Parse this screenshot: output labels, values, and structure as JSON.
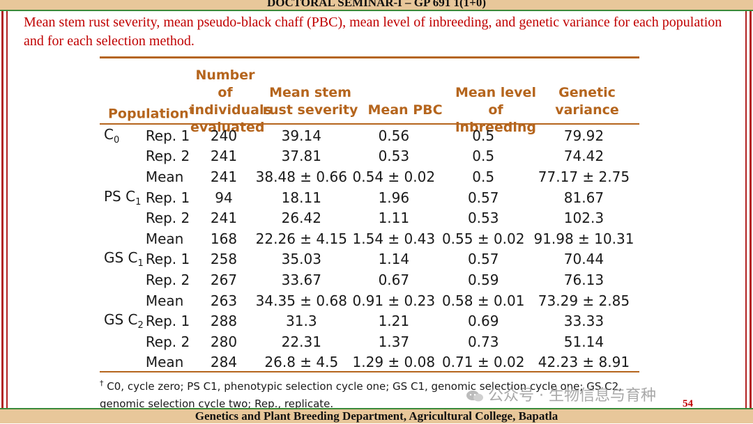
{
  "header": {
    "title": "DOCTORAL SEMINAR-I – GP 691 1(1+0)"
  },
  "heading": "Mean stem rust severity, mean pseudo-black chaff (PBC), mean level of inbreeding, and genetic variance for each population and for each selection method.",
  "table": {
    "columns": {
      "population": "Population",
      "population_mark": "†",
      "n_line1": "Number of",
      "n_line2": "individuals",
      "n_line3": "evaluated",
      "stem_line1": "Mean stem",
      "stem_line2": "rust severity",
      "pbc": "Mean PBC",
      "inb_line1": "Mean level of",
      "inb_line2": "inbreeding",
      "gv_line1": "Genetic",
      "gv_line2": "variance"
    },
    "rows": [
      {
        "pop_base": "C",
        "pop_sub": "0",
        "rep": "Rep. 1",
        "n": "240",
        "stem": "39.14",
        "pbc": "0.56",
        "inb": "0.5",
        "gv": "79.92"
      },
      {
        "pop_base": "",
        "pop_sub": "",
        "rep": "Rep. 2",
        "n": "241",
        "stem": "37.81",
        "pbc": "0.53",
        "inb": "0.5",
        "gv": "74.42"
      },
      {
        "pop_base": "",
        "pop_sub": "",
        "rep": "Mean",
        "n": "241",
        "stem": "38.48 ± 0.66",
        "pbc": "0.54 ± 0.02",
        "inb": "0.5",
        "gv": "77.17 ± 2.75"
      },
      {
        "pop_base": "PS C",
        "pop_sub": "1",
        "rep": "Rep. 1",
        "n": "94",
        "stem": "18.11",
        "pbc": "1.96",
        "inb": "0.57",
        "gv": "81.67"
      },
      {
        "pop_base": "",
        "pop_sub": "",
        "rep": "Rep. 2",
        "n": "241",
        "stem": "26.42",
        "pbc": "1.11",
        "inb": "0.53",
        "gv": "102.3"
      },
      {
        "pop_base": "",
        "pop_sub": "",
        "rep": "Mean",
        "n": "168",
        "stem": "22.26 ± 4.15",
        "pbc": "1.54 ± 0.43",
        "inb": "0.55 ± 0.02",
        "gv": "91.98 ± 10.31"
      },
      {
        "pop_base": "GS C",
        "pop_sub": "1",
        "rep": "Rep. 1",
        "n": "258",
        "stem": "35.03",
        "pbc": "1.14",
        "inb": "0.57",
        "gv": "70.44"
      },
      {
        "pop_base": "",
        "pop_sub": "",
        "rep": "Rep. 2",
        "n": "267",
        "stem": "33.67",
        "pbc": "0.67",
        "inb": "0.59",
        "gv": "76.13"
      },
      {
        "pop_base": "",
        "pop_sub": "",
        "rep": "Mean",
        "n": "263",
        "stem": "34.35 ± 0.68",
        "pbc": "0.91 ± 0.23",
        "inb": "0.58 ± 0.01",
        "gv": "73.29 ± 2.85"
      },
      {
        "pop_base": "GS C",
        "pop_sub": "2",
        "rep": "Rep. 1",
        "n": "288",
        "stem": "31.3",
        "pbc": "1.21",
        "inb": "0.69",
        "gv": "33.33"
      },
      {
        "pop_base": "",
        "pop_sub": "",
        "rep": "Rep. 2",
        "n": "280",
        "stem": "22.31",
        "pbc": "1.37",
        "inb": "0.73",
        "gv": "51.14"
      },
      {
        "pop_base": "",
        "pop_sub": "",
        "rep": "Mean",
        "n": "284",
        "stem": "26.8 ± 4.5",
        "pbc": "1.29 ± 0.08",
        "inb": "0.71 ± 0.02",
        "gv": "42.23 ± 8.91"
      }
    ]
  },
  "footnote": {
    "mark": "†",
    "line1": "C0, cycle zero; PS C1, phenotypic selection cycle one; GS C1, genomic selection cycle one; GS C2,",
    "line2": "genomic selection cycle two; Rep., replicate."
  },
  "watermark": "公众号 · 生物信息与育种",
  "page_number": "54",
  "footer": {
    "title": "Genetics and Plant Breeding Department, Agricultural College, Bapatla"
  },
  "colors": {
    "heading": "#c00000",
    "table_header": "#b5651d",
    "border": "#b22222",
    "bar": "#e8c79a"
  }
}
